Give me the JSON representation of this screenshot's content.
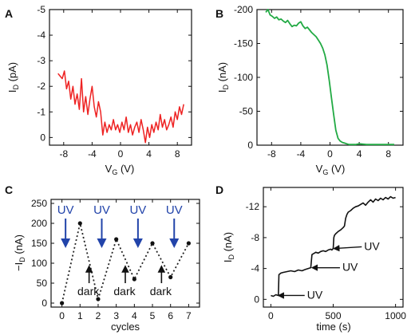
{
  "panels": {
    "A": {
      "letter": "A"
    },
    "B": {
      "letter": "B"
    },
    "C": {
      "letter": "C"
    },
    "D": {
      "letter": "D"
    }
  },
  "colors": {
    "A_trace": "#ee2222",
    "B_trace": "#22aa44",
    "C_trace": "#222222",
    "D_trace": "#111111",
    "uv_arrow": "#2244aa",
    "axis": "#111111"
  },
  "chart_data": [
    {
      "panel": "A",
      "type": "line",
      "title": "",
      "xlabel": "V",
      "xlabel_sub": "G",
      "xlabel_unit": "(V)",
      "ylabel": "I",
      "ylabel_sub": "D",
      "ylabel_unit": "(pA)",
      "xlim": [
        -10,
        10
      ],
      "ylim": [
        0.3,
        -5
      ],
      "xticks": [
        -8,
        -4,
        0,
        4,
        8
      ],
      "xtick_labels": [
        "-8",
        "-4",
        "0",
        "4",
        "8"
      ],
      "yticks": [
        -5,
        -4,
        -3,
        -2,
        -1,
        0
      ],
      "ytick_labels": [
        "-5",
        "-4",
        "-3",
        "-2",
        "-1",
        "0"
      ],
      "series": [
        {
          "x": [
            -8.8,
            -8.5,
            -8.2,
            -7.9,
            -7.6,
            -7.3,
            -7.0,
            -6.7,
            -6.4,
            -6.1,
            -5.8,
            -5.5,
            -5.2,
            -4.9,
            -4.6,
            -4.3,
            -4.0,
            -3.7,
            -3.4,
            -3.1,
            -2.8,
            -2.5,
            -2.2,
            -1.9,
            -1.6,
            -1.3,
            -1.0,
            -0.7,
            -0.4,
            -0.1,
            0.2,
            0.5,
            0.8,
            1.1,
            1.4,
            1.7,
            2.0,
            2.3,
            2.6,
            2.9,
            3.2,
            3.5,
            3.8,
            4.1,
            4.4,
            4.7,
            5.0,
            5.3,
            5.6,
            5.9,
            6.2,
            6.5,
            6.8,
            7.1,
            7.4,
            7.7,
            8.0,
            8.3,
            8.6,
            8.9
          ],
          "y": [
            -2.5,
            -2.4,
            -2.3,
            -2.6,
            -1.9,
            -2.2,
            -1.5,
            -2.0,
            -1.3,
            -1.7,
            -1.1,
            -2.3,
            -1.0,
            -1.6,
            -0.9,
            -1.5,
            -2.0,
            -1.2,
            -0.8,
            -1.4,
            -1.0,
            -0.1,
            -0.6,
            -0.2,
            -0.5,
            -0.3,
            -0.7,
            -0.3,
            -0.5,
            -0.2,
            -0.6,
            -0.3,
            -0.8,
            -0.2,
            -0.5,
            -0.1,
            -0.4,
            -0.6,
            -0.2,
            -0.7,
            -0.3,
            0.2,
            -0.4,
            0.0,
            -0.5,
            -0.2,
            -0.6,
            -0.3,
            -0.9,
            -0.4,
            -0.7,
            -0.3,
            -0.5,
            -0.8,
            -0.4,
            -1.0,
            -0.7,
            -1.2,
            -0.9,
            -1.3
          ]
        }
      ]
    },
    {
      "panel": "B",
      "type": "line",
      "title": "",
      "xlabel": "V",
      "xlabel_sub": "G",
      "xlabel_unit": "(V)",
      "ylabel": "I",
      "ylabel_sub": "D",
      "ylabel_unit": "(nA)",
      "xlim": [
        -10,
        10
      ],
      "ylim": [
        0,
        -200
      ],
      "xticks": [
        -8,
        -4,
        0,
        4,
        8
      ],
      "xtick_labels": [
        "-8",
        "-4",
        "0",
        "4",
        "8"
      ],
      "yticks": [
        -200,
        -150,
        -100,
        -50,
        0
      ],
      "ytick_labels": [
        "-200",
        "-150",
        "-100",
        "-50",
        "0"
      ],
      "series": [
        {
          "x": [
            -8.8,
            -8.5,
            -8.2,
            -7.9,
            -7.6,
            -7.3,
            -7.0,
            -6.7,
            -6.4,
            -6.1,
            -5.8,
            -5.5,
            -5.2,
            -4.9,
            -4.6,
            -4.3,
            -4.0,
            -3.7,
            -3.4,
            -3.1,
            -2.8,
            -2.5,
            -2.2,
            -1.9,
            -1.6,
            -1.3,
            -1.0,
            -0.7,
            -0.4,
            -0.1,
            0.2,
            0.5,
            0.8,
            1.1,
            1.4,
            1.7,
            2.0,
            2.3,
            2.6,
            3.0,
            3.5,
            4.0,
            5.0,
            6.0,
            7.0,
            8.0,
            8.8
          ],
          "y": [
            -196,
            -200,
            -192,
            -190,
            -187,
            -189,
            -185,
            -186,
            -183,
            -181,
            -184,
            -179,
            -175,
            -177,
            -176,
            -180,
            -182,
            -176,
            -172,
            -174,
            -170,
            -166,
            -163,
            -160,
            -155,
            -150,
            -143,
            -133,
            -118,
            -95,
            -70,
            -45,
            -22,
            -10,
            -6,
            -4,
            -3,
            -2,
            -1,
            -1,
            -1,
            -2,
            -1,
            -1,
            -1,
            -1,
            -1
          ]
        }
      ]
    },
    {
      "panel": "C",
      "type": "line",
      "title": "",
      "xlabel": "cycles",
      "ylabel": "−I",
      "ylabel_sub": "D",
      "ylabel_unit": "(nA)",
      "xlim": [
        -0.6,
        7.6
      ],
      "ylim": [
        -10,
        260
      ],
      "xticks": [
        0,
        1,
        2,
        3,
        4,
        5,
        6,
        7
      ],
      "xtick_labels": [
        "0",
        "1",
        "2",
        "3",
        "4",
        "5",
        "6",
        "7"
      ],
      "yticks": [
        0,
        50,
        100,
        150,
        200,
        250
      ],
      "ytick_labels": [
        "0",
        "50",
        "100",
        "150",
        "200",
        "250"
      ],
      "series": [
        {
          "x": [
            0,
            1,
            2,
            3,
            4,
            5,
            6,
            7
          ],
          "y": [
            0,
            200,
            10,
            160,
            60,
            150,
            65,
            150
          ]
        }
      ],
      "annotations": {
        "uv_label": "UV",
        "dark_label": "dark",
        "uv_x": [
          0,
          2,
          4,
          6
        ],
        "dark_x": [
          1.5,
          3.5,
          5.5
        ]
      }
    },
    {
      "panel": "D",
      "type": "line",
      "title": "",
      "xlabel": "time (s)",
      "ylabel": "I",
      "ylabel_sub": "D",
      "ylabel_unit": "(nA)",
      "xlim": [
        -60,
        1060
      ],
      "ylim": [
        1,
        -14.5
      ],
      "xticks": [
        0,
        500,
        1000
      ],
      "xtick_labels": [
        "0",
        "500",
        "1000"
      ],
      "yticks": [
        -12,
        -8,
        -4,
        0
      ],
      "ytick_labels": [
        "-12",
        "-8",
        "-4",
        "0"
      ],
      "series": [
        {
          "x": [
            0,
            20,
            40,
            60,
            65,
            80,
            100,
            130,
            160,
            190,
            220,
            250,
            280,
            300,
            320,
            330,
            340,
            350,
            360,
            380,
            400,
            420,
            440,
            460,
            480,
            490,
            500,
            505,
            510,
            520,
            540,
            560,
            580,
            590,
            600,
            610,
            620,
            640,
            660,
            680,
            700,
            720,
            740,
            760,
            780,
            800,
            820,
            840,
            860,
            880,
            900,
            920,
            940,
            960,
            980,
            1000
          ],
          "y": [
            -0.5,
            -0.4,
            -0.6,
            -0.5,
            -3.2,
            -3.4,
            -3.5,
            -3.6,
            -3.7,
            -3.6,
            -3.8,
            -3.7,
            -3.9,
            -4.0,
            -4.1,
            -5.8,
            -5.9,
            -6.0,
            -6.1,
            -6.0,
            -6.2,
            -6.3,
            -6.2,
            -6.4,
            -6.5,
            -6.4,
            -6.6,
            -8.0,
            -8.3,
            -8.5,
            -8.8,
            -9.0,
            -9.3,
            -9.5,
            -10.5,
            -11.0,
            -11.3,
            -11.5,
            -11.8,
            -12.0,
            -12.1,
            -12.3,
            -12.5,
            -12.2,
            -12.6,
            -12.9,
            -12.6,
            -13.0,
            -12.8,
            -13.1,
            -12.9,
            -13.2,
            -13.0,
            -13.3,
            -13.1,
            -13.2
          ]
        }
      ],
      "annotations": {
        "uv_label": "UV",
        "uv_points": [
          [
            60,
            -0.5
          ],
          [
            330,
            -4.1
          ],
          [
            505,
            -6.6
          ]
        ]
      }
    }
  ]
}
